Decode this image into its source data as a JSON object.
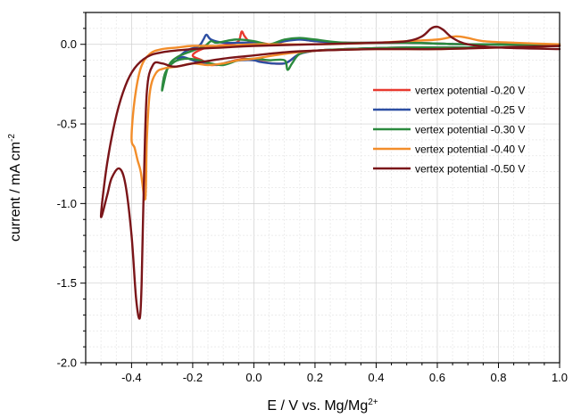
{
  "chart_data": {
    "type": "line",
    "title": "",
    "xlabel": "E / V vs. Mg/Mg",
    "xlabel_sup": "2+",
    "ylabel": "current / mA cm",
    "ylabel_sup": "-2",
    "xlim": [
      -0.55,
      1.0
    ],
    "ylim": [
      -2.0,
      0.2
    ],
    "x_ticks": [
      "-0.4",
      "-0.2",
      "0.0",
      "0.2",
      "0.4",
      "0.6",
      "0.8",
      "1.0"
    ],
    "y_ticks": [
      "0.0",
      "-0.5",
      "-1.0",
      "-1.5",
      "-2.0"
    ],
    "grid": true,
    "legend_position": "right",
    "series": [
      {
        "name": "vertex potential -0.20 V",
        "color": "#e8392f",
        "points": [
          [
            1.0,
            -0.01
          ],
          [
            0.7,
            -0.02
          ],
          [
            0.5,
            -0.02
          ],
          [
            0.3,
            -0.03
          ],
          [
            0.2,
            -0.04
          ],
          [
            0.15,
            -0.06
          ],
          [
            0.12,
            -0.1
          ],
          [
            0.1,
            -0.12
          ],
          [
            0.06,
            -0.12
          ],
          [
            0.03,
            -0.11
          ],
          [
            0.0,
            -0.1
          ],
          [
            -0.03,
            -0.09
          ],
          [
            -0.06,
            -0.1
          ],
          [
            -0.1,
            -0.12
          ],
          [
            -0.14,
            -0.13
          ],
          [
            -0.17,
            -0.1
          ],
          [
            -0.2,
            -0.07
          ],
          [
            -0.17,
            -0.03
          ],
          [
            -0.12,
            -0.01
          ],
          [
            -0.08,
            0.0
          ],
          [
            -0.05,
            0.02
          ],
          [
            -0.04,
            0.08
          ],
          [
            -0.03,
            0.05
          ],
          [
            -0.01,
            0.01
          ],
          [
            0.02,
            0.01
          ],
          [
            0.06,
            0.0
          ],
          [
            0.1,
            0.02
          ],
          [
            0.13,
            0.03
          ],
          [
            0.16,
            0.03
          ],
          [
            0.2,
            0.02
          ],
          [
            0.3,
            0.01
          ],
          [
            0.5,
            0.01
          ],
          [
            0.7,
            0.0
          ],
          [
            1.0,
            0.0
          ]
        ]
      },
      {
        "name": "vertex potential -0.25 V",
        "color": "#2d4fa3",
        "points": [
          [
            1.0,
            -0.01
          ],
          [
            0.7,
            -0.02
          ],
          [
            0.5,
            -0.02
          ],
          [
            0.3,
            -0.03
          ],
          [
            0.2,
            -0.04
          ],
          [
            0.15,
            -0.06
          ],
          [
            0.12,
            -0.1
          ],
          [
            0.1,
            -0.12
          ],
          [
            0.06,
            -0.12
          ],
          [
            0.02,
            -0.11
          ],
          [
            0.0,
            -0.1
          ],
          [
            -0.04,
            -0.1
          ],
          [
            -0.08,
            -0.11
          ],
          [
            -0.12,
            -0.13
          ],
          [
            -0.16,
            -0.12
          ],
          [
            -0.2,
            -0.1
          ],
          [
            -0.23,
            -0.08
          ],
          [
            -0.25,
            -0.09
          ],
          [
            -0.22,
            -0.04
          ],
          [
            -0.18,
            -0.01
          ],
          [
            -0.165,
            0.03
          ],
          [
            -0.155,
            0.06
          ],
          [
            -0.14,
            0.03
          ],
          [
            -0.1,
            0.01
          ],
          [
            -0.05,
            0.01
          ],
          [
            0.0,
            0.01
          ],
          [
            0.05,
            0.0
          ],
          [
            0.1,
            0.02
          ],
          [
            0.15,
            0.03
          ],
          [
            0.2,
            0.02
          ],
          [
            0.3,
            0.01
          ],
          [
            0.5,
            0.01
          ],
          [
            0.7,
            0.0
          ],
          [
            1.0,
            0.0
          ]
        ]
      },
      {
        "name": "vertex potential -0.30 V",
        "color": "#2b8a3e",
        "points": [
          [
            1.0,
            -0.01
          ],
          [
            0.7,
            -0.02
          ],
          [
            0.5,
            -0.02
          ],
          [
            0.3,
            -0.03
          ],
          [
            0.2,
            -0.04
          ],
          [
            0.15,
            -0.06
          ],
          [
            0.125,
            -0.12
          ],
          [
            0.11,
            -0.16
          ],
          [
            0.1,
            -0.1
          ],
          [
            0.05,
            -0.1
          ],
          [
            0.0,
            -0.09
          ],
          [
            -0.05,
            -0.1
          ],
          [
            -0.1,
            -0.13
          ],
          [
            -0.14,
            -0.12
          ],
          [
            -0.18,
            -0.1
          ],
          [
            -0.22,
            -0.09
          ],
          [
            -0.26,
            -0.11
          ],
          [
            -0.29,
            -0.18
          ],
          [
            -0.3,
            -0.29
          ],
          [
            -0.28,
            -0.14
          ],
          [
            -0.25,
            -0.08
          ],
          [
            -0.2,
            -0.04
          ],
          [
            -0.16,
            -0.01
          ],
          [
            -0.14,
            0.02
          ],
          [
            -0.12,
            0.01
          ],
          [
            -0.06,
            0.03
          ],
          [
            0.0,
            0.02
          ],
          [
            0.05,
            0.0
          ],
          [
            0.1,
            0.03
          ],
          [
            0.15,
            0.04
          ],
          [
            0.2,
            0.03
          ],
          [
            0.3,
            0.01
          ],
          [
            0.5,
            0.01
          ],
          [
            0.7,
            0.0
          ],
          [
            1.0,
            0.0
          ]
        ]
      },
      {
        "name": "vertex potential -0.40 V",
        "color": "#f28d2a",
        "points": [
          [
            1.0,
            -0.01
          ],
          [
            0.8,
            -0.02
          ],
          [
            0.6,
            -0.03
          ],
          [
            0.4,
            -0.03
          ],
          [
            0.2,
            -0.04
          ],
          [
            0.1,
            -0.06
          ],
          [
            0.0,
            -0.09
          ],
          [
            -0.05,
            -0.1
          ],
          [
            -0.1,
            -0.12
          ],
          [
            -0.15,
            -0.13
          ],
          [
            -0.2,
            -0.12
          ],
          [
            -0.25,
            -0.14
          ],
          [
            -0.29,
            -0.15
          ],
          [
            -0.32,
            -0.18
          ],
          [
            -0.34,
            -0.3
          ],
          [
            -0.35,
            -0.6
          ],
          [
            -0.355,
            -0.97
          ],
          [
            -0.37,
            -0.8
          ],
          [
            -0.38,
            -0.73
          ],
          [
            -0.39,
            -0.65
          ],
          [
            -0.4,
            -0.59
          ],
          [
            -0.39,
            -0.35
          ],
          [
            -0.37,
            -0.15
          ],
          [
            -0.34,
            -0.06
          ],
          [
            -0.3,
            -0.03
          ],
          [
            -0.25,
            -0.02
          ],
          [
            -0.2,
            -0.01
          ],
          [
            -0.1,
            -0.01
          ],
          [
            0.0,
            0.0
          ],
          [
            0.2,
            0.0
          ],
          [
            0.4,
            0.01
          ],
          [
            0.5,
            0.02
          ],
          [
            0.6,
            0.03
          ],
          [
            0.66,
            0.05
          ],
          [
            0.7,
            0.04
          ],
          [
            0.75,
            0.02
          ],
          [
            0.85,
            0.01
          ],
          [
            1.0,
            0.0
          ]
        ]
      },
      {
        "name": "vertex potential -0.50 V",
        "color": "#7a1519",
        "points": [
          [
            1.0,
            -0.01
          ],
          [
            0.8,
            -0.02
          ],
          [
            0.6,
            -0.03
          ],
          [
            0.4,
            -0.03
          ],
          [
            0.2,
            -0.04
          ],
          [
            0.1,
            -0.05
          ],
          [
            0.0,
            -0.07
          ],
          [
            -0.1,
            -0.09
          ],
          [
            -0.2,
            -0.12
          ],
          [
            -0.26,
            -0.14
          ],
          [
            -0.3,
            -0.12
          ],
          [
            -0.33,
            -0.13
          ],
          [
            -0.35,
            -0.3
          ],
          [
            -0.36,
            -0.9
          ],
          [
            -0.367,
            -1.5
          ],
          [
            -0.373,
            -1.72
          ],
          [
            -0.385,
            -1.6
          ],
          [
            -0.4,
            -1.2
          ],
          [
            -0.42,
            -0.88
          ],
          [
            -0.44,
            -0.78
          ],
          [
            -0.465,
            -0.84
          ],
          [
            -0.48,
            -0.95
          ],
          [
            -0.5,
            -1.08
          ],
          [
            -0.48,
            -0.75
          ],
          [
            -0.45,
            -0.45
          ],
          [
            -0.42,
            -0.26
          ],
          [
            -0.39,
            -0.15
          ],
          [
            -0.35,
            -0.08
          ],
          [
            -0.3,
            -0.05
          ],
          [
            -0.2,
            -0.03
          ],
          [
            -0.1,
            -0.02
          ],
          [
            0.0,
            -0.01
          ],
          [
            0.2,
            0.0
          ],
          [
            0.4,
            0.01
          ],
          [
            0.5,
            0.02
          ],
          [
            0.55,
            0.05
          ],
          [
            0.58,
            0.1
          ],
          [
            0.6,
            0.11
          ],
          [
            0.62,
            0.09
          ],
          [
            0.65,
            0.04
          ],
          [
            0.7,
            0.0
          ],
          [
            0.8,
            -0.02
          ],
          [
            1.0,
            -0.03
          ]
        ]
      }
    ]
  }
}
